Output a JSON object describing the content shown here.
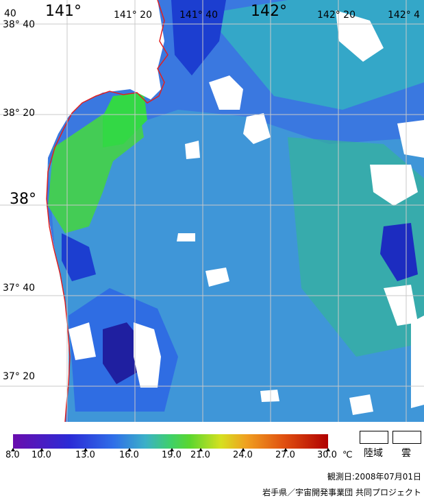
{
  "map": {
    "lon_labels": [
      "141°",
      "141° 20",
      "141° 40",
      "142°",
      "142° 20",
      "142° 4"
    ],
    "lat_labels": [
      "38° 40",
      "38° 20",
      "38°",
      "37° 40",
      "37° 20"
    ],
    "corner_label": "40"
  },
  "legend": {
    "ticks": [
      "8.0",
      "10.0",
      "13.0",
      "16.0",
      "19.0",
      "21.0",
      "24.0",
      "27.0",
      "30.0"
    ],
    "unit": "℃",
    "land_label": "陸域",
    "cloud_label": "雲",
    "colors": {
      "low": "#6a0dad",
      "mid_low": "#2f6fe8",
      "mid": "#3fd06a",
      "mid_high": "#d6e020",
      "high": "#b00000"
    }
  },
  "footer": {
    "date": "観測日:2008年07月01日",
    "credit": "岩手県／宇宙開発事業団 共同プロジェクト"
  }
}
